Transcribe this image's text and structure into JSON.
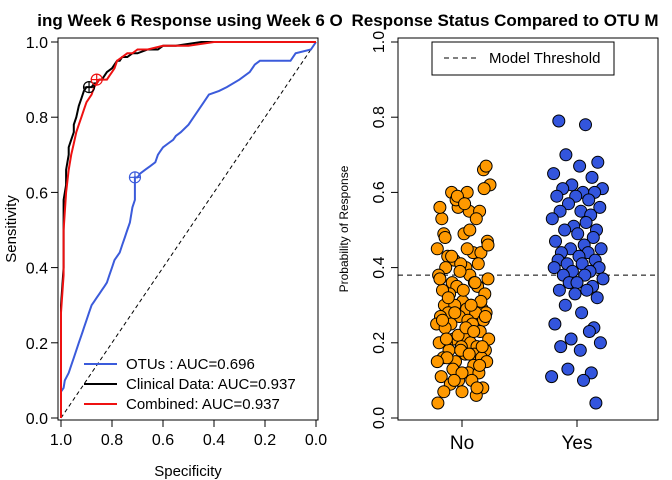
{
  "chart_data": [
    {
      "type": "line",
      "title": "ing Week 6 Response using Week 6 O",
      "xlabel": "Specificity",
      "ylabel": "Sensitivity",
      "xlim": [
        1.0,
        0.0
      ],
      "ylim": [
        0.0,
        1.0
      ],
      "x_reversed": true,
      "xticks": [
        "1.0",
        "0.8",
        "0.6",
        "0.4",
        "0.2",
        "0.0"
      ],
      "xtick_values": [
        1.0,
        0.8,
        0.6,
        0.4,
        0.2,
        0.0
      ],
      "yticks": [
        "0.0",
        "0.2",
        "0.4",
        "0.6",
        "0.8",
        "1.0"
      ],
      "ytick_values": [
        0.0,
        0.2,
        0.4,
        0.6,
        0.8,
        1.0
      ],
      "legend": "bottom-right",
      "reference_line": {
        "from": [
          1.0,
          0.0
        ],
        "to": [
          0.0,
          1.0
        ],
        "style": "dashed"
      },
      "series": [
        {
          "name": "OTUs : AUC=0.696",
          "color": "#3b5bdb",
          "specificity": [
            1.0,
            1.0,
            0.99,
            0.985,
            0.97,
            0.96,
            0.95,
            0.94,
            0.93,
            0.92,
            0.915,
            0.91,
            0.9,
            0.89,
            0.88,
            0.87,
            0.86,
            0.85,
            0.84,
            0.83,
            0.82,
            0.81,
            0.8,
            0.79,
            0.78,
            0.77,
            0.76,
            0.75,
            0.74,
            0.73,
            0.72,
            0.71,
            0.71,
            0.7,
            0.69,
            0.67,
            0.65,
            0.63,
            0.62,
            0.61,
            0.6,
            0.58,
            0.56,
            0.55,
            0.53,
            0.5,
            0.48,
            0.46,
            0.44,
            0.42,
            0.38,
            0.35,
            0.3,
            0.26,
            0.24,
            0.22,
            0.2,
            0.1,
            0.08,
            0.02,
            0.0
          ],
          "sensitivity": [
            0.0,
            0.07,
            0.08,
            0.1,
            0.12,
            0.14,
            0.16,
            0.18,
            0.2,
            0.22,
            0.23,
            0.24,
            0.26,
            0.28,
            0.3,
            0.31,
            0.32,
            0.33,
            0.34,
            0.35,
            0.36,
            0.38,
            0.4,
            0.42,
            0.43,
            0.44,
            0.46,
            0.48,
            0.5,
            0.52,
            0.56,
            0.58,
            0.64,
            0.64,
            0.65,
            0.66,
            0.67,
            0.68,
            0.7,
            0.71,
            0.72,
            0.73,
            0.74,
            0.75,
            0.76,
            0.78,
            0.8,
            0.82,
            0.84,
            0.86,
            0.87,
            0.88,
            0.9,
            0.92,
            0.94,
            0.95,
            0.95,
            0.95,
            0.97,
            0.98,
            1.0
          ],
          "threshold_marker": [
            0.71,
            0.64
          ]
        },
        {
          "name": "Clinical Data: AUC=0.937",
          "color": "#000000",
          "specificity": [
            1.0,
            1.0,
            0.99,
            0.99,
            0.98,
            0.98,
            0.97,
            0.97,
            0.96,
            0.95,
            0.95,
            0.94,
            0.93,
            0.92,
            0.91,
            0.9,
            0.89,
            0.88,
            0.87,
            0.86,
            0.85,
            0.84,
            0.83,
            0.82,
            0.8,
            0.79,
            0.78,
            0.77,
            0.76,
            0.74,
            0.72,
            0.7,
            0.66,
            0.62,
            0.6,
            0.55,
            0.45,
            0.3,
            0.2,
            0.1,
            0.0
          ],
          "sensitivity": [
            0.0,
            0.3,
            0.4,
            0.58,
            0.62,
            0.66,
            0.7,
            0.72,
            0.74,
            0.76,
            0.78,
            0.8,
            0.83,
            0.85,
            0.87,
            0.88,
            0.88,
            0.88,
            0.89,
            0.89,
            0.9,
            0.9,
            0.91,
            0.92,
            0.93,
            0.94,
            0.95,
            0.95,
            0.96,
            0.96,
            0.97,
            0.97,
            0.98,
            0.98,
            0.99,
            0.99,
            1.0,
            1.0,
            1.0,
            1.0,
            1.0
          ],
          "threshold_marker": [
            0.89,
            0.88
          ]
        },
        {
          "name": "Combined: AUC=0.937",
          "color": "#ee1111",
          "specificity": [
            1.0,
            1.0,
            0.99,
            0.99,
            0.98,
            0.97,
            0.96,
            0.95,
            0.94,
            0.93,
            0.92,
            0.91,
            0.9,
            0.88,
            0.87,
            0.86,
            0.85,
            0.84,
            0.83,
            0.82,
            0.81,
            0.8,
            0.79,
            0.78,
            0.76,
            0.74,
            0.72,
            0.7,
            0.66,
            0.6,
            0.55,
            0.5,
            0.4,
            0.3,
            0.2,
            0.1,
            0.0
          ],
          "sensitivity": [
            0.0,
            0.28,
            0.38,
            0.5,
            0.6,
            0.66,
            0.7,
            0.73,
            0.76,
            0.78,
            0.8,
            0.82,
            0.84,
            0.86,
            0.88,
            0.89,
            0.9,
            0.9,
            0.9,
            0.9,
            0.91,
            0.92,
            0.93,
            0.95,
            0.96,
            0.97,
            0.97,
            0.98,
            0.98,
            0.99,
            0.99,
            0.99,
            1.0,
            1.0,
            1.0,
            1.0,
            1.0
          ],
          "threshold_marker": [
            0.86,
            0.9
          ]
        }
      ]
    },
    {
      "type": "scatter",
      "title": "Response Status Compared to OTU M",
      "xlabel": "",
      "ylabel": "Probability of Response",
      "categories": [
        "No",
        "Yes"
      ],
      "ylim": [
        0.0,
        1.0
      ],
      "yticks": [
        "0.0",
        "0.2",
        "0.4",
        "0.6",
        "0.8",
        "1.0"
      ],
      "ytick_values": [
        0.0,
        0.2,
        0.4,
        0.6,
        0.8,
        1.0
      ],
      "threshold": 0.38,
      "legend": "top-center",
      "legend_entries": [
        {
          "label": "Model Threshold",
          "style": "dashed"
        }
      ],
      "series": [
        {
          "category": "No",
          "color": "#ff9900",
          "jitter": [
            0.11,
            -0.06,
            -0.31,
            0.08,
            -0.34,
            0.27,
            -0.16,
            0.43,
            -0.28,
            0.03,
            -0.09,
            0.33,
            0.22,
            -0.38,
            -0.12,
            0.17,
            0.39,
            -0.22,
            0.06,
            -0.25,
            0.29,
            -0.02,
            0.12,
            -0.36,
            -0.15,
            0.19,
            0.4,
            -0.08,
            0.24,
            -0.19,
            -0.3,
            0.35,
            0.01,
            0.14,
            -0.27,
            0.31,
            -0.11,
            0.07,
            -0.21,
            0.26,
            0.37,
            -0.33,
            -0.04,
            0.21,
            0.09,
            -0.17,
            0.33,
            -0.39,
            -0.26,
            0.16,
            0.04,
            0.28,
            -0.13,
            -0.06,
            0.41,
            0.13,
            -0.24,
            0.23,
            -0.35,
            -0.01,
            0.36,
            -0.2,
            0.19,
            0.05,
            -0.29,
            0.3,
            -0.1,
            -0.23,
            0.18,
            0.38,
            -0.14,
            0.1,
            0.26,
            -0.32,
            -0.05,
            0.15,
            -0.18,
            0.32,
            0.0,
            0.22,
            -0.37,
            0.34,
            -0.07,
            0.12,
            -0.26,
            0.4,
            0.08,
            -0.16,
            0.25,
            -0.03,
            -0.34,
            0.2,
            0.02,
            -0.21,
            0.29,
            0.14,
            -0.11,
            0.36,
            -0.3,
            0.06,
            0.18,
            -0.24,
            0.31,
            -0.02,
            0.11,
            -0.38,
            0.27,
            0.0,
            -0.12,
            0.23,
            -0.28,
            0.37,
            0.04
          ],
          "values": [
            0.55,
            0.56,
            0.53,
            0.6,
            0.56,
            0.55,
            0.6,
            0.62,
            0.49,
            0.49,
            0.58,
            0.66,
            0.53,
            0.45,
            0.42,
            0.44,
            0.47,
            0.43,
            0.4,
            0.4,
            0.44,
            0.41,
            0.38,
            0.38,
            0.36,
            0.36,
            0.37,
            0.35,
            0.35,
            0.33,
            0.34,
            0.33,
            0.31,
            0.3,
            0.3,
            0.29,
            0.3,
            0.29,
            0.28,
            0.29,
            0.28,
            0.27,
            0.27,
            0.28,
            0.26,
            0.25,
            0.26,
            0.25,
            0.24,
            0.25,
            0.22,
            0.23,
            0.21,
            0.22,
            0.21,
            0.2,
            0.2,
            0.19,
            0.2,
            0.19,
            0.18,
            0.18,
            0.17,
            0.17,
            0.16,
            0.16,
            0.15,
            0.16,
            0.14,
            0.15,
            0.13,
            0.12,
            0.12,
            0.11,
            0.1,
            0.1,
            0.09,
            0.08,
            0.07,
            0.06,
            0.04,
            0.61,
            0.59,
            0.5,
            0.48,
            0.46,
            0.45,
            0.43,
            0.41,
            0.39,
            0.37,
            0.36,
            0.34,
            0.32,
            0.31,
            0.3,
            0.28,
            0.27,
            0.26,
            0.24,
            0.23,
            0.21,
            0.19,
            0.18,
            0.17,
            0.15,
            0.14,
            0.12,
            0.1,
            0.08,
            0.07,
            0.67,
            0.57
          ]
        },
        {
          "category": "Yes",
          "color": "#3355dd",
          "jitter": [
            -0.28,
            0.13,
            -0.17,
            0.32,
            0.04,
            -0.36,
            0.23,
            -0.08,
            0.39,
            -0.22,
            0.09,
            0.27,
            -0.31,
            -0.02,
            0.18,
            -0.13,
            0.35,
            -0.26,
            0.06,
            0.21,
            -0.38,
            0.14,
            -0.05,
            0.3,
            -0.19,
            0.01,
            0.25,
            -0.33,
            0.11,
            0.37,
            -0.1,
            -0.24,
            0.17,
            0.03,
            -0.29,
            0.28,
            -0.15,
            0.08,
            0.34,
            -0.35,
            -0.07,
            0.2,
            -0.21,
            0.12,
            0.4,
            -0.12,
            0.0,
            0.24,
            -0.27,
            0.15,
            -0.03,
            0.31,
            -0.18,
            0.07,
            -0.34,
            0.26,
            0.19,
            -0.09,
            0.36,
            -0.25,
            0.05,
            -0.14,
            0.22,
            -0.39,
            0.1,
            0.29
          ],
          "values": [
            0.79,
            0.78,
            0.7,
            0.68,
            0.67,
            0.65,
            0.64,
            0.62,
            0.61,
            0.61,
            0.6,
            0.6,
            0.59,
            0.59,
            0.58,
            0.57,
            0.56,
            0.55,
            0.55,
            0.54,
            0.53,
            0.52,
            0.51,
            0.5,
            0.5,
            0.49,
            0.48,
            0.47,
            0.46,
            0.45,
            0.45,
            0.44,
            0.44,
            0.43,
            0.42,
            0.42,
            0.41,
            0.41,
            0.4,
            0.4,
            0.39,
            0.39,
            0.38,
            0.38,
            0.37,
            0.36,
            0.36,
            0.35,
            0.34,
            0.34,
            0.33,
            0.32,
            0.3,
            0.28,
            0.25,
            0.24,
            0.23,
            0.21,
            0.2,
            0.19,
            0.18,
            0.13,
            0.12,
            0.11,
            0.1,
            0.04
          ]
        }
      ]
    }
  ]
}
